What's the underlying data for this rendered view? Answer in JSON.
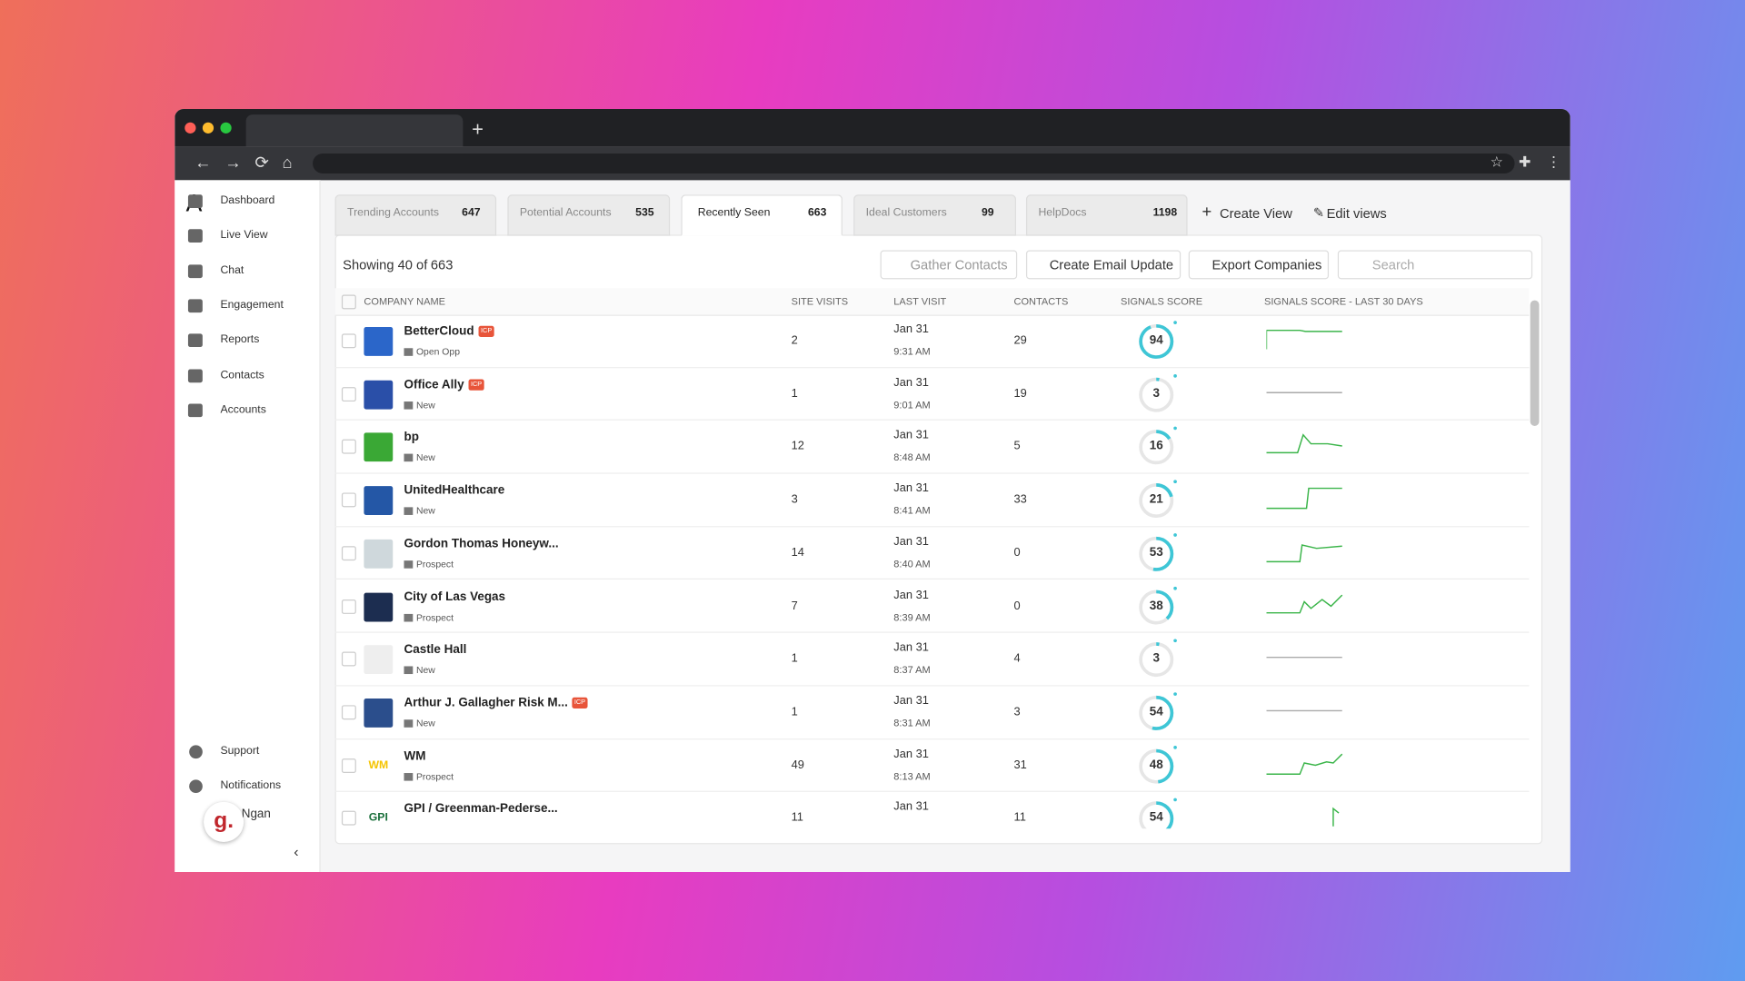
{
  "sidebar": {
    "nav": [
      "Dashboard",
      "Live View",
      "Chat",
      "Engagement",
      "Reports",
      "Contacts",
      "Accounts"
    ],
    "bottom": [
      "Support",
      "Notifications"
    ],
    "user": "Ngan"
  },
  "tabs": [
    {
      "label": "Trending Accounts",
      "count": 647
    },
    {
      "label": "Potential Accounts",
      "count": 535
    },
    {
      "label": "Recently Seen",
      "count": 663
    },
    {
      "label": "Ideal Customers",
      "count": 99
    },
    {
      "label": "HelpDocs",
      "count": 1198
    }
  ],
  "view_actions": [
    "Create View",
    "Edit views"
  ],
  "toolbar": {
    "showing": "Showing 40 of",
    "total": 663,
    "buttons": [
      "Gather Contacts",
      "Create Email Update",
      "Export Companies"
    ],
    "search": "Search"
  },
  "table": {
    "columns": [
      "COMPANY NAME",
      "SITE VISITS",
      "LAST VISIT",
      "CONTACTS",
      "SIGNALS SCORE",
      "SIGNALS SCORE - LAST 30 DAYS"
    ],
    "rows": [
      {
        "name": "BetterCloud",
        "badge": "ICP",
        "status": "Open Opp",
        "site_visits": 2,
        "date": "Jan 31",
        "time": "9:31 AM",
        "contacts": 29,
        "score": 94
      },
      {
        "name": "Office Ally",
        "badge": "ICP",
        "status": "New",
        "site_visits": 1,
        "date": "Jan 31",
        "time": "9:01 AM",
        "contacts": 19,
        "score": 3
      },
      {
        "name": "bp",
        "status": "New",
        "site_visits": 12,
        "date": "Jan 31",
        "time": "8:48 AM",
        "contacts": 5,
        "score": 16
      },
      {
        "name": "UnitedHealthcare",
        "status": "New",
        "site_visits": 3,
        "date": "Jan 31",
        "time": "8:41 AM",
        "contacts": 33,
        "score": 21
      },
      {
        "name": "Gordon Thomas Honeyw...",
        "status": "Prospect",
        "site_visits": 14,
        "date": "Jan 31",
        "time": "8:40 AM",
        "contacts": 0,
        "score": 53
      },
      {
        "name": "City of Las Vegas",
        "status": "Prospect",
        "site_visits": 7,
        "date": "Jan 31",
        "time": "8:39 AM",
        "contacts": 0,
        "score": 38
      },
      {
        "name": "Castle Hall",
        "status": "New",
        "site_visits": 1,
        "date": "Jan 31",
        "time": "8:37 AM",
        "contacts": 4,
        "score": 3
      },
      {
        "name": "Arthur J. Gallagher Risk M...",
        "badge": "ICP",
        "status": "New",
        "site_visits": 1,
        "date": "Jan 31",
        "time": "8:31 AM",
        "contacts": 3,
        "score": 54
      },
      {
        "name": "WM",
        "logo": "WM",
        "status": "Prospect",
        "site_visits": 49,
        "date": "Jan 31",
        "time": "8:13 AM",
        "contacts": 31,
        "score": 48
      },
      {
        "name": "GPI / Greenman-Pederse...",
        "logo": "GPI",
        "site_visits": 11,
        "date": "Jan 31",
        "contacts": 11,
        "score": 54
      }
    ]
  }
}
